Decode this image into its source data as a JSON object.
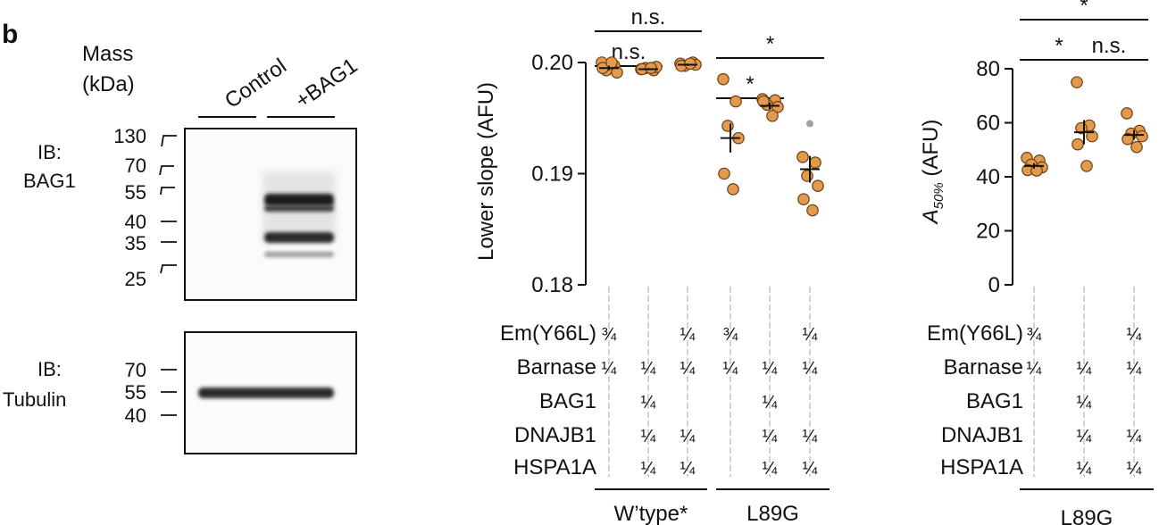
{
  "figure": {
    "panel_letter": "b"
  },
  "western_blot": {
    "mass_title_line1": "Mass",
    "mass_title_line2": "(kDa)",
    "lane_labels": [
      "Control",
      "+BAG1"
    ],
    "blots": [
      {
        "label_line1": "IB:",
        "label_line2": "BAG1",
        "markers": [
          "130",
          "70",
          "55",
          "40",
          "35",
          "25"
        ]
      },
      {
        "label_line1": "IB:",
        "label_line2": "Tubulin",
        "markers": [
          "70",
          "55",
          "40"
        ]
      }
    ]
  },
  "chart_data": [
    {
      "type": "scatter",
      "ylabel": "Lower slope (AFU)",
      "ylim": [
        0.18,
        0.2
      ],
      "yticks": [
        "0.18",
        "0.19",
        "0.20"
      ],
      "yticks_values": [
        0.18,
        0.19,
        0.2
      ],
      "groups": [
        {
          "points": [
            0.2,
            0.1997,
            0.1993,
            0.1991,
            0.1995,
            0.2
          ],
          "mean": 0.1995,
          "sem": 0.0002
        },
        {
          "points": [
            0.1994,
            0.1993,
            0.1995,
            0.1996,
            0.1994,
            0.1995
          ],
          "mean": 0.1994,
          "sem": 0.0001
        },
        {
          "points": [
            0.1999,
            0.2,
            0.1997,
            0.1998,
            0.1997,
            0.1999
          ],
          "mean": 0.1998,
          "sem": 0.0001
        },
        {
          "points": [
            0.1985,
            0.1965,
            0.1943,
            0.1932,
            0.19,
            0.1886
          ],
          "mean": 0.1932,
          "sem": 0.0013
        },
        {
          "points": [
            0.1967,
            0.1966,
            0.1962,
            0.196,
            0.1965,
            0.1952
          ],
          "mean": 0.1961,
          "sem": 0.0003
        },
        {
          "points": [
            0.1915,
            0.191,
            0.1898,
            0.1889,
            0.1877,
            0.1867
          ],
          "mean": 0.1904,
          "sem": 0.0012,
          "excluded_point": 0.1945
        }
      ],
      "significance": [
        {
          "from": 0,
          "to": 1,
          "label": "n.s."
        },
        {
          "from": 0,
          "to": 2,
          "label": "n.s."
        },
        {
          "from": 3,
          "to": 4,
          "label": "*"
        },
        {
          "from": 3,
          "to": 5,
          "label": "*"
        }
      ],
      "conditions": {
        "row_labels": [
          "Em(Y66L)",
          "Barnase",
          "BAG1",
          "DNAJB1",
          "HSPA1A"
        ],
        "rows": [
          [
            "¾",
            "",
            "¼",
            "¾",
            "",
            "¼"
          ],
          [
            "¼",
            "¼",
            "¼",
            "¼",
            "¼",
            "¼"
          ],
          [
            "",
            "¼",
            "",
            "",
            "¼",
            ""
          ],
          [
            "",
            "¼",
            "¼",
            "",
            "¼",
            "¼"
          ],
          [
            "",
            "¼",
            "¼",
            "",
            "¼",
            "¼"
          ]
        ]
      },
      "bottom_groups": [
        {
          "label": "W’type*",
          "from": 0,
          "to": 2
        },
        {
          "label": "L89G",
          "from": 3,
          "to": 5
        }
      ]
    },
    {
      "type": "scatter",
      "ylabel_main": "A",
      "ylabel_sub": "50%",
      "ylabel_unit": " (AFU)",
      "ylim": [
        0,
        80
      ],
      "yticks": [
        "0",
        "20",
        "40",
        "60",
        "80"
      ],
      "yticks_values": [
        0,
        20,
        40,
        60,
        80
      ],
      "groups": [
        {
          "points": [
            47,
            46,
            44.5,
            43.5,
            42.5,
            42.3
          ],
          "mean": 44,
          "sem": 1
        },
        {
          "points": [
            75,
            59,
            58,
            55,
            52,
            44
          ],
          "mean": 56.5,
          "sem": 4.5
        },
        {
          "points": [
            63.5,
            57,
            56,
            55,
            54,
            51
          ],
          "mean": 55.5,
          "sem": 1.8
        }
      ],
      "significance": [
        {
          "from": 0,
          "to": 1,
          "label": "*"
        },
        {
          "from": 1,
          "to": 2,
          "label": "n.s."
        },
        {
          "from": 0,
          "to": 2,
          "label": "*"
        }
      ],
      "conditions": {
        "row_labels": [
          "Em(Y66L)",
          "Barnase",
          "BAG1",
          "DNAJB1",
          "HSPA1A"
        ],
        "rows": [
          [
            "¾",
            "",
            "¼"
          ],
          [
            "¼",
            "¼",
            "¼"
          ],
          [
            "",
            "¼",
            ""
          ],
          [
            "",
            "¼",
            "¼"
          ],
          [
            "",
            "¼",
            "¼"
          ]
        ]
      },
      "bottom_groups": [
        {
          "label": "L89G",
          "from": 0,
          "to": 2
        }
      ]
    }
  ],
  "colors": {
    "point_fill": "#E39A4C",
    "point_stroke": "#6a3f14",
    "excluded_point": "#a0a0a0",
    "axis": "#111111",
    "guide": "#b3b3b3"
  }
}
